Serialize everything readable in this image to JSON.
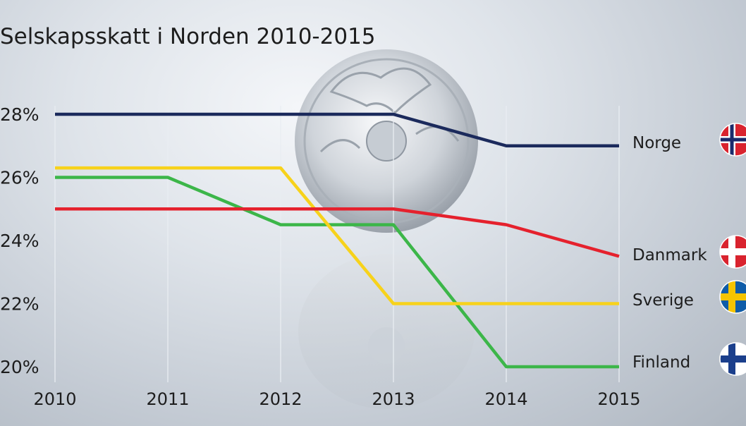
{
  "chart_data": {
    "type": "line",
    "title": "Selskapsskatt i Norden 2010-2015",
    "xlabel": "",
    "ylabel": "",
    "x": [
      "2010",
      "2011",
      "2012",
      "2013",
      "2014",
      "2015"
    ],
    "y_ticks": [
      "28%",
      "26%",
      "24%",
      "22%",
      "20%"
    ],
    "ylim": [
      20,
      28
    ],
    "grid": "vertical",
    "legend": "right end labels",
    "series": [
      {
        "name": "Norge",
        "color": "#1b2a5c",
        "flag": "norway-flag-icon",
        "values": [
          28,
          28,
          28,
          28,
          27,
          27
        ]
      },
      {
        "name": "Danmark",
        "color": "#e5212d",
        "flag": "denmark-flag-icon",
        "values": [
          25,
          25,
          25,
          25,
          24.5,
          23.5
        ]
      },
      {
        "name": "Sverige",
        "color": "#f7d21b",
        "flag": "sweden-flag-icon",
        "values": [
          26.3,
          26.3,
          26.3,
          22,
          22,
          22
        ]
      },
      {
        "name": "Finland",
        "color": "#3cb649",
        "flag": "finland-flag-icon",
        "values": [
          26,
          26,
          24.5,
          24.5,
          20,
          20
        ]
      }
    ]
  }
}
